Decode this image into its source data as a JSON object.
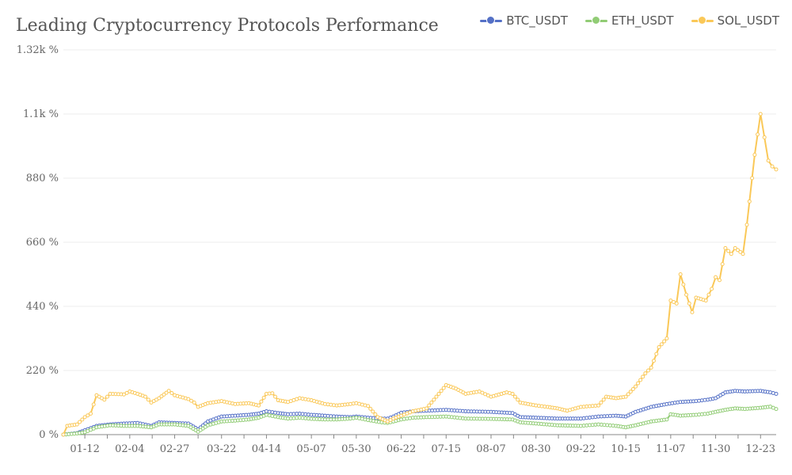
{
  "chart_data": {
    "type": "line",
    "title": "Leading Cryptocurrency Protocols Performance",
    "xlabel": "",
    "ylabel": "",
    "ylim": [
      0,
      1320
    ],
    "y_ticks": [
      "0 %",
      "220 %",
      "440 %",
      "660 %",
      "880 %",
      "1.1k %",
      "1.32k %"
    ],
    "y_tick_values": [
      0,
      220,
      440,
      660,
      880,
      1100,
      1320
    ],
    "x_ticks": [
      "01-12",
      "02-04",
      "02-27",
      "03-22",
      "04-14",
      "05-07",
      "05-30",
      "06-22",
      "07-15",
      "08-07",
      "08-30",
      "09-22",
      "10-15",
      "11-07",
      "11-30",
      "12-23"
    ],
    "grid": true,
    "legend_position": "top-right",
    "x_start": "01-01",
    "x_end": "12-31",
    "series": [
      {
        "name": "BTC_USDT",
        "color": "#5470c6",
        "points": [
          [
            "01-01",
            0
          ],
          [
            "01-08",
            5
          ],
          [
            "01-12",
            15
          ],
          [
            "01-18",
            30
          ],
          [
            "01-25",
            35
          ],
          [
            "02-01",
            38
          ],
          [
            "02-08",
            40
          ],
          [
            "02-15",
            30
          ],
          [
            "02-19",
            42
          ],
          [
            "02-27",
            40
          ],
          [
            "03-05",
            38
          ],
          [
            "03-10",
            18
          ],
          [
            "03-15",
            45
          ],
          [
            "03-22",
            62
          ],
          [
            "03-29",
            65
          ],
          [
            "04-05",
            68
          ],
          [
            "04-10",
            72
          ],
          [
            "04-14",
            80
          ],
          [
            "04-20",
            74
          ],
          [
            "04-25",
            70
          ],
          [
            "05-01",
            72
          ],
          [
            "05-07",
            68
          ],
          [
            "05-14",
            65
          ],
          [
            "05-20",
            62
          ],
          [
            "05-27",
            60
          ],
          [
            "05-30",
            62
          ],
          [
            "06-05",
            58
          ],
          [
            "06-12",
            55
          ],
          [
            "06-15",
            55
          ],
          [
            "06-18",
            62
          ],
          [
            "06-22",
            75
          ],
          [
            "06-28",
            80
          ],
          [
            "07-05",
            82
          ],
          [
            "07-15",
            85
          ],
          [
            "07-25",
            80
          ],
          [
            "08-07",
            78
          ],
          [
            "08-18",
            74
          ],
          [
            "08-22",
            60
          ],
          [
            "08-30",
            58
          ],
          [
            "09-10",
            55
          ],
          [
            "09-22",
            55
          ],
          [
            "10-01",
            62
          ],
          [
            "10-10",
            65
          ],
          [
            "10-15",
            62
          ],
          [
            "10-20",
            78
          ],
          [
            "10-28",
            95
          ],
          [
            "11-05",
            105
          ],
          [
            "11-12",
            112
          ],
          [
            "11-20",
            115
          ],
          [
            "11-26",
            120
          ],
          [
            "11-30",
            125
          ],
          [
            "12-05",
            145
          ],
          [
            "12-10",
            150
          ],
          [
            "12-15",
            148
          ],
          [
            "12-23",
            150
          ],
          [
            "12-28",
            145
          ],
          [
            "12-31",
            140
          ]
        ]
      },
      {
        "name": "ETH_USDT",
        "color": "#91cc75",
        "points": [
          [
            "01-01",
            0
          ],
          [
            "01-08",
            4
          ],
          [
            "01-12",
            8
          ],
          [
            "01-18",
            25
          ],
          [
            "01-25",
            32
          ],
          [
            "02-01",
            30
          ],
          [
            "02-08",
            30
          ],
          [
            "02-15",
            25
          ],
          [
            "02-19",
            35
          ],
          [
            "02-27",
            35
          ],
          [
            "03-05",
            30
          ],
          [
            "03-10",
            10
          ],
          [
            "03-15",
            32
          ],
          [
            "03-22",
            45
          ],
          [
            "03-29",
            48
          ],
          [
            "04-05",
            52
          ],
          [
            "04-10",
            58
          ],
          [
            "04-14",
            68
          ],
          [
            "04-20",
            60
          ],
          [
            "04-25",
            55
          ],
          [
            "05-01",
            58
          ],
          [
            "05-07",
            54
          ],
          [
            "05-14",
            52
          ],
          [
            "05-20",
            52
          ],
          [
            "05-27",
            55
          ],
          [
            "05-30",
            58
          ],
          [
            "06-05",
            50
          ],
          [
            "06-12",
            42
          ],
          [
            "06-15",
            40
          ],
          [
            "06-18",
            45
          ],
          [
            "06-22",
            52
          ],
          [
            "06-28",
            58
          ],
          [
            "07-05",
            60
          ],
          [
            "07-15",
            62
          ],
          [
            "07-25",
            55
          ],
          [
            "08-07",
            54
          ],
          [
            "08-18",
            52
          ],
          [
            "08-22",
            42
          ],
          [
            "08-30",
            38
          ],
          [
            "09-10",
            32
          ],
          [
            "09-22",
            30
          ],
          [
            "10-01",
            35
          ],
          [
            "10-10",
            30
          ],
          [
            "10-15",
            25
          ],
          [
            "10-20",
            32
          ],
          [
            "10-28",
            45
          ],
          [
            "11-05",
            52
          ],
          [
            "11-07",
            70
          ],
          [
            "11-12",
            65
          ],
          [
            "11-20",
            68
          ],
          [
            "11-26",
            72
          ],
          [
            "11-30",
            78
          ],
          [
            "12-05",
            85
          ],
          [
            "12-10",
            90
          ],
          [
            "12-15",
            88
          ],
          [
            "12-23",
            92
          ],
          [
            "12-28",
            96
          ],
          [
            "12-31",
            88
          ]
        ]
      },
      {
        "name": "SOL_USDT",
        "color": "#fac858",
        "points": [
          [
            "01-01",
            0
          ],
          [
            "01-03",
            30
          ],
          [
            "01-08",
            35
          ],
          [
            "01-12",
            60
          ],
          [
            "01-15",
            72
          ],
          [
            "01-18",
            135
          ],
          [
            "01-22",
            120
          ],
          [
            "01-25",
            140
          ],
          [
            "02-01",
            138
          ],
          [
            "02-04",
            148
          ],
          [
            "02-08",
            140
          ],
          [
            "02-12",
            130
          ],
          [
            "02-15",
            110
          ],
          [
            "02-19",
            125
          ],
          [
            "02-24",
            150
          ],
          [
            "02-27",
            135
          ],
          [
            "03-05",
            122
          ],
          [
            "03-08",
            110
          ],
          [
            "03-10",
            95
          ],
          [
            "03-15",
            108
          ],
          [
            "03-22",
            115
          ],
          [
            "03-29",
            105
          ],
          [
            "04-05",
            108
          ],
          [
            "04-10",
            100
          ],
          [
            "04-14",
            140
          ],
          [
            "04-17",
            142
          ],
          [
            "04-20",
            118
          ],
          [
            "04-25",
            112
          ],
          [
            "05-01",
            125
          ],
          [
            "05-07",
            118
          ],
          [
            "05-14",
            105
          ],
          [
            "05-20",
            100
          ],
          [
            "05-27",
            105
          ],
          [
            "05-30",
            108
          ],
          [
            "06-05",
            98
          ],
          [
            "06-10",
            60
          ],
          [
            "06-15",
            45
          ],
          [
            "06-18",
            55
          ],
          [
            "06-22",
            65
          ],
          [
            "06-28",
            80
          ],
          [
            "07-05",
            90
          ],
          [
            "07-10",
            130
          ],
          [
            "07-15",
            170
          ],
          [
            "07-20",
            158
          ],
          [
            "07-25",
            140
          ],
          [
            "08-01",
            148
          ],
          [
            "08-07",
            130
          ],
          [
            "08-15",
            145
          ],
          [
            "08-18",
            140
          ],
          [
            "08-22",
            110
          ],
          [
            "08-30",
            100
          ],
          [
            "09-05",
            95
          ],
          [
            "09-10",
            90
          ],
          [
            "09-15",
            82
          ],
          [
            "09-22",
            95
          ],
          [
            "10-01",
            100
          ],
          [
            "10-05",
            130
          ],
          [
            "10-10",
            125
          ],
          [
            "10-15",
            130
          ],
          [
            "10-20",
            165
          ],
          [
            "10-25",
            210
          ],
          [
            "10-28",
            230
          ],
          [
            "11-01",
            300
          ],
          [
            "11-05",
            330
          ],
          [
            "11-07",
            460
          ],
          [
            "11-10",
            450
          ],
          [
            "11-12",
            550
          ],
          [
            "11-15",
            480
          ],
          [
            "11-18",
            420
          ],
          [
            "11-20",
            470
          ],
          [
            "11-25",
            460
          ],
          [
            "11-28",
            500
          ],
          [
            "11-30",
            540
          ],
          [
            "12-02",
            530
          ],
          [
            "12-05",
            640
          ],
          [
            "12-08",
            620
          ],
          [
            "12-10",
            640
          ],
          [
            "12-14",
            620
          ],
          [
            "12-16",
            720
          ],
          [
            "12-20",
            960
          ],
          [
            "12-23",
            1100
          ],
          [
            "12-25",
            1020
          ],
          [
            "12-27",
            940
          ],
          [
            "12-29",
            920
          ],
          [
            "12-31",
            910
          ]
        ]
      }
    ]
  }
}
